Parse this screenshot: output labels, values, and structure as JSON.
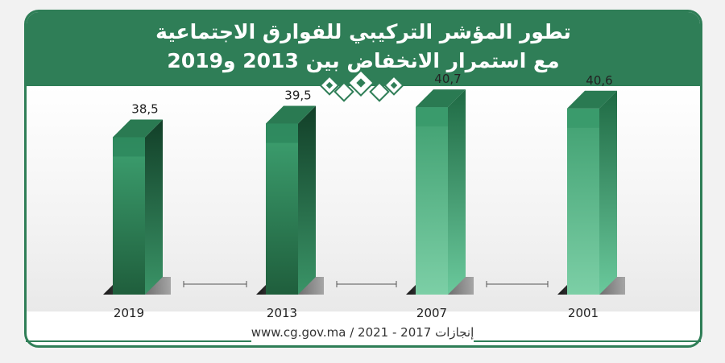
{
  "title": {
    "line1": "تطور المؤشر التركيبي للفوارق الاجتماعية",
    "line2": "مع  استمرار الانخفاض بين 2013 و2019"
  },
  "chart_data": {
    "type": "bar",
    "categories": [
      "2019",
      "2013",
      "2007",
      "2001"
    ],
    "values": [
      38.5,
      39.5,
      40.7,
      40.6
    ],
    "value_labels": [
      "38,5",
      "39,5",
      "40,7",
      "40,6"
    ],
    "xlabel": "",
    "ylabel": "",
    "ylim": [
      0,
      45
    ],
    "grid": false,
    "legend": "none"
  },
  "footer": {
    "text": "www.cg.gov.ma / 2021 - 2017 إنجازات"
  },
  "colors": {
    "brand": "#2f7e57",
    "bar_dark": "#1f5e3c",
    "bar_light": "#6fc9a0"
  }
}
